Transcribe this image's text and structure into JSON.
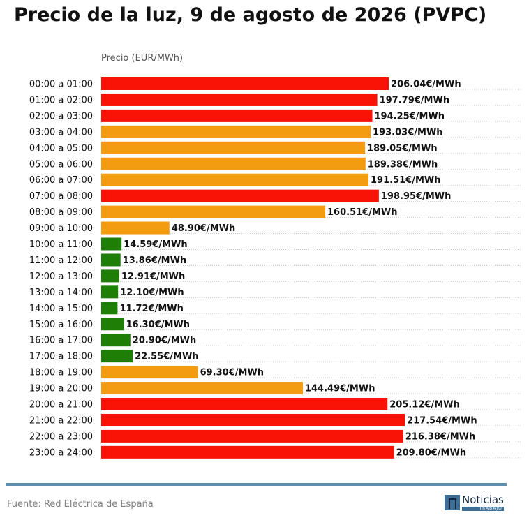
{
  "chart_data": {
    "type": "bar",
    "orientation": "horizontal",
    "title": "Precio de la luz, 9 de agosto de 2026 (PVPC)",
    "xlabel": "Precio (EUR/MWh)",
    "xlim": [
      0,
      230
    ],
    "grid": "dotted",
    "categories": [
      "00:00 a 01:00",
      "01:00 a 02:00",
      "02:00 a 03:00",
      "03:00 a 04:00",
      "04:00 a 05:00",
      "05:00 a 06:00",
      "06:00 a 07:00",
      "07:00 a 08:00",
      "08:00 a 09:00",
      "09:00 a 10:00",
      "10:00 a 11:00",
      "11:00 a 12:00",
      "12:00 a 13:00",
      "13:00 a 14:00",
      "14:00 a 15:00",
      "15:00 a 16:00",
      "16:00 a 17:00",
      "17:00 a 18:00",
      "18:00 a 19:00",
      "19:00 a 20:00",
      "20:00 a 21:00",
      "21:00 a 22:00",
      "22:00 a 23:00",
      "23:00 a 24:00"
    ],
    "values": [
      206.04,
      197.79,
      194.25,
      193.03,
      189.05,
      189.38,
      191.51,
      198.95,
      160.51,
      48.9,
      14.59,
      13.86,
      12.91,
      12.1,
      11.72,
      16.3,
      20.9,
      22.55,
      69.3,
      144.49,
      205.12,
      217.54,
      216.38,
      209.8
    ],
    "value_labels": [
      "206.04€/MWh",
      "197.79€/MWh",
      "194.25€/MWh",
      "193.03€/MWh",
      "189.05€/MWh",
      "189.38€/MWh",
      "191.51€/MWh",
      "198.95€/MWh",
      "160.51€/MWh",
      "48.90€/MWh",
      "14.59€/MWh",
      "13.86€/MWh",
      "12.91€/MWh",
      "12.10€/MWh",
      "11.72€/MWh",
      "16.30€/MWh",
      "20.90€/MWh",
      "22.55€/MWh",
      "69.30€/MWh",
      "144.49€/MWh",
      "205.12€/MWh",
      "217.54€/MWh",
      "216.38€/MWh",
      "209.80€/MWh"
    ],
    "bar_levels": [
      "high",
      "high",
      "high",
      "mid",
      "mid",
      "mid",
      "mid",
      "high",
      "mid",
      "mid",
      "low",
      "low",
      "low",
      "low",
      "low",
      "low",
      "low",
      "low",
      "mid",
      "mid",
      "high",
      "high",
      "high",
      "high"
    ],
    "colors": {
      "high": "#f81306",
      "mid": "#f39c12",
      "low": "#1e7e06"
    }
  },
  "footer": {
    "source": "Fuente: Red Eléctrica de España",
    "logo_word": "Noticias",
    "logo_sub": "TRABAJO"
  }
}
